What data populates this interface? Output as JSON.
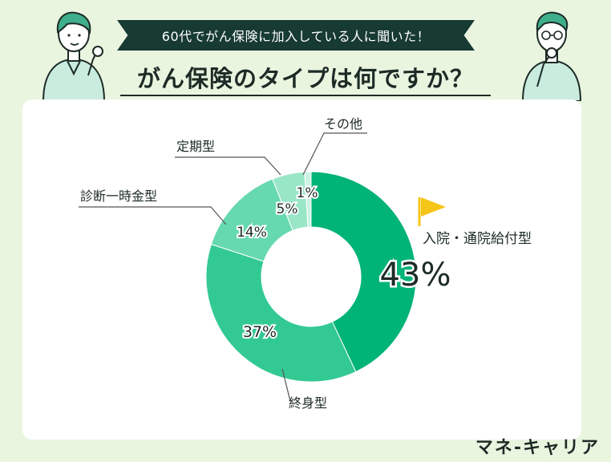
{
  "header": {
    "banner_text": "60代でがん保険に加入している人に聞いた！",
    "title": "がん保険のタイプは何ですか？"
  },
  "brand": {
    "name": "マネ-キャリア"
  },
  "colors": {
    "background": "#eaf5e0",
    "banner": "#173a32",
    "flag": "#f5c518",
    "slices": [
      "#00b377",
      "#33c993",
      "#66d9ae",
      "#99e6c7",
      "#cdf2e3"
    ]
  },
  "chart_data": {
    "type": "pie",
    "categories": [
      "入院・通院給付型",
      "終身型",
      "診断一時金型",
      "定期型",
      "その他"
    ],
    "values": [
      43,
      37,
      14,
      5,
      1
    ],
    "value_labels": [
      "43%",
      "37%",
      "14%",
      "5%",
      "1%"
    ],
    "title": "",
    "donut": true
  }
}
